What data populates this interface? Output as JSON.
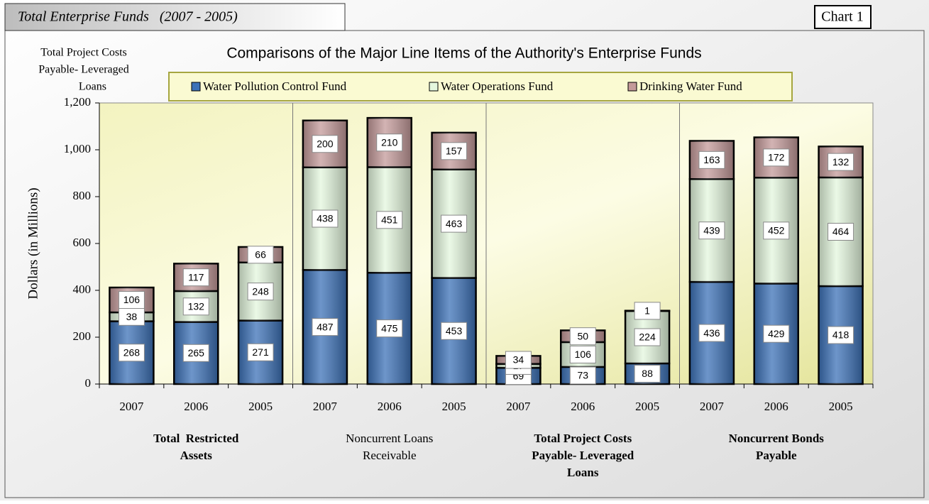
{
  "header": {
    "tab": "Total Enterprise Funds   (2007 - 2005)",
    "chart_label": "Chart 1",
    "corner_note": [
      "Total Project Costs",
      "Payable- Leveraged",
      "Loans"
    ]
  },
  "chart_data": {
    "type": "stacked-bar",
    "title": "Comparisons of the Major Line Items of the Authority's Enterprise Funds",
    "y_label": "Dollars (in Millions)",
    "categories": [
      "2007",
      "2006",
      "2005",
      "2007",
      "2006",
      "2005",
      "2007",
      "2006",
      "2005",
      "2007",
      "2006",
      "2005"
    ],
    "groups": [
      {
        "lines": [
          "Total  Restricted",
          "Assets"
        ],
        "bold": true
      },
      {
        "lines": [
          "Noncurrent Loans",
          "Receivable"
        ],
        "bold": false
      },
      {
        "lines": [
          "Total Project Costs",
          "Payable- Leveraged",
          "Loans"
        ],
        "bold": true
      },
      {
        "lines": [
          "Noncurrent Bonds",
          "Payable"
        ],
        "bold": true
      }
    ],
    "series": [
      {
        "name": "Water Pollution Control Fund",
        "color": "#3d72b8",
        "values": [
          268,
          265,
          271,
          487,
          475,
          453,
          69,
          73,
          88,
          436,
          429,
          418
        ]
      },
      {
        "name": "Water Operations Fund",
        "color": "#e4f7de",
        "values": [
          38,
          132,
          248,
          438,
          451,
          463,
          17,
          106,
          224,
          439,
          452,
          464
        ]
      },
      {
        "name": "Drinking Water Fund",
        "color": "#c49a9a",
        "values": [
          106,
          117,
          66,
          200,
          210,
          157,
          34,
          50,
          1,
          163,
          172,
          132
        ]
      }
    ],
    "ylim": [
      0,
      1200
    ],
    "yticks": [
      0,
      200,
      400,
      600,
      800,
      {
        "value": 1000,
        "label": "1,000"
      },
      {
        "value": 1200,
        "label": "1,200"
      }
    ]
  }
}
